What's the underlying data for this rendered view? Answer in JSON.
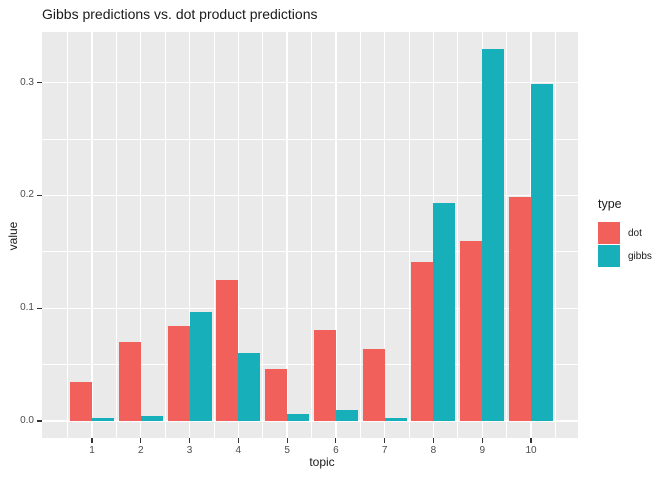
{
  "title": "Gibbs predictions vs. dot product predictions",
  "colors": {
    "panel_bg": "#EAEAEA",
    "grid": "#FFFFFF",
    "tick_mark": "#333333",
    "tick_text": "#4D4D4D",
    "title_text": "#1A1A1A",
    "dot": "#F2605C",
    "gibbs": "#17B0BA"
  },
  "chart_data": {
    "type": "bar",
    "grouping": "dodged",
    "title": "Gibbs predictions vs. dot product predictions",
    "xlabel": "topic",
    "ylabel": "value",
    "categories": [
      "1",
      "2",
      "3",
      "4",
      "5",
      "6",
      "7",
      "8",
      "9",
      "10"
    ],
    "series": [
      {
        "name": "dot",
        "color": "#F2605C",
        "values": [
          0.035,
          0.07,
          0.084,
          0.125,
          0.046,
          0.081,
          0.064,
          0.141,
          0.16,
          0.199
        ]
      },
      {
        "name": "gibbs",
        "color": "#17B0BA",
        "values": [
          0.003,
          0.004,
          0.097,
          0.06,
          0.006,
          0.01,
          0.003,
          0.193,
          0.33,
          0.299
        ]
      }
    ],
    "yticks": [
      {
        "value": 0.0,
        "label": "0.0"
      },
      {
        "value": 0.1,
        "label": "0.1"
      },
      {
        "value": 0.2,
        "label": "0.2"
      },
      {
        "value": 0.3,
        "label": "0.3"
      }
    ],
    "yticks_minor": [
      0.05,
      0.15,
      0.25
    ],
    "ylim": [
      -0.015,
      0.345
    ],
    "grid": "white major+minor on grey panel",
    "legend": {
      "title": "type",
      "position": "right",
      "entries": [
        "dot",
        "gibbs"
      ]
    }
  }
}
